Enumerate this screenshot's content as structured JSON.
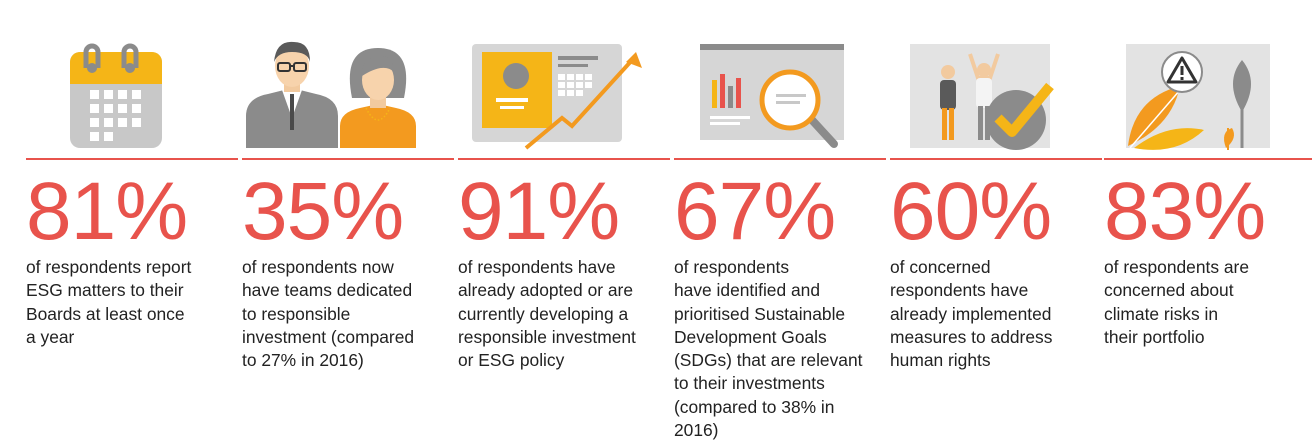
{
  "colors": {
    "accent_red": "#e8534c",
    "orange": "#f39a1f",
    "yellow": "#f5b517",
    "gray": "#8b8b8b",
    "light_gray": "#c8c8c8",
    "text": "#222222"
  },
  "stats": [
    {
      "icon": "calendar-icon",
      "value": "81%",
      "lines": [
        "of respondents report",
        "ESG matters to their",
        "Boards at least once",
        "a year"
      ]
    },
    {
      "icon": "business-people-icon",
      "value": "35%",
      "lines": [
        "of respondents now",
        "have teams dedicated",
        "to responsible",
        "investment (compared",
        "to 27% in 2016)"
      ]
    },
    {
      "icon": "policy-growth-icon",
      "value": "91%",
      "lines": [
        "of respondents have",
        "already adopted or are",
        "currently developing a",
        "responsible investment",
        "or ESG policy"
      ]
    },
    {
      "icon": "magnifier-report-icon",
      "value": "67%",
      "lines": [
        "of respondents",
        "have identified and",
        "prioritised Sustainable",
        "Development Goals",
        "(SDGs) that are relevant",
        "to their investments",
        "(compared to 38% in",
        "2016)"
      ]
    },
    {
      "icon": "people-checkmark-icon",
      "value": "60%",
      "lines": [
        "of concerned",
        "respondents have",
        "already implemented",
        "measures to address",
        "human rights"
      ]
    },
    {
      "icon": "climate-warning-icon",
      "value": "83%",
      "lines": [
        "of respondents are",
        "concerned about",
        "climate risks in",
        "their portfolio"
      ]
    }
  ]
}
